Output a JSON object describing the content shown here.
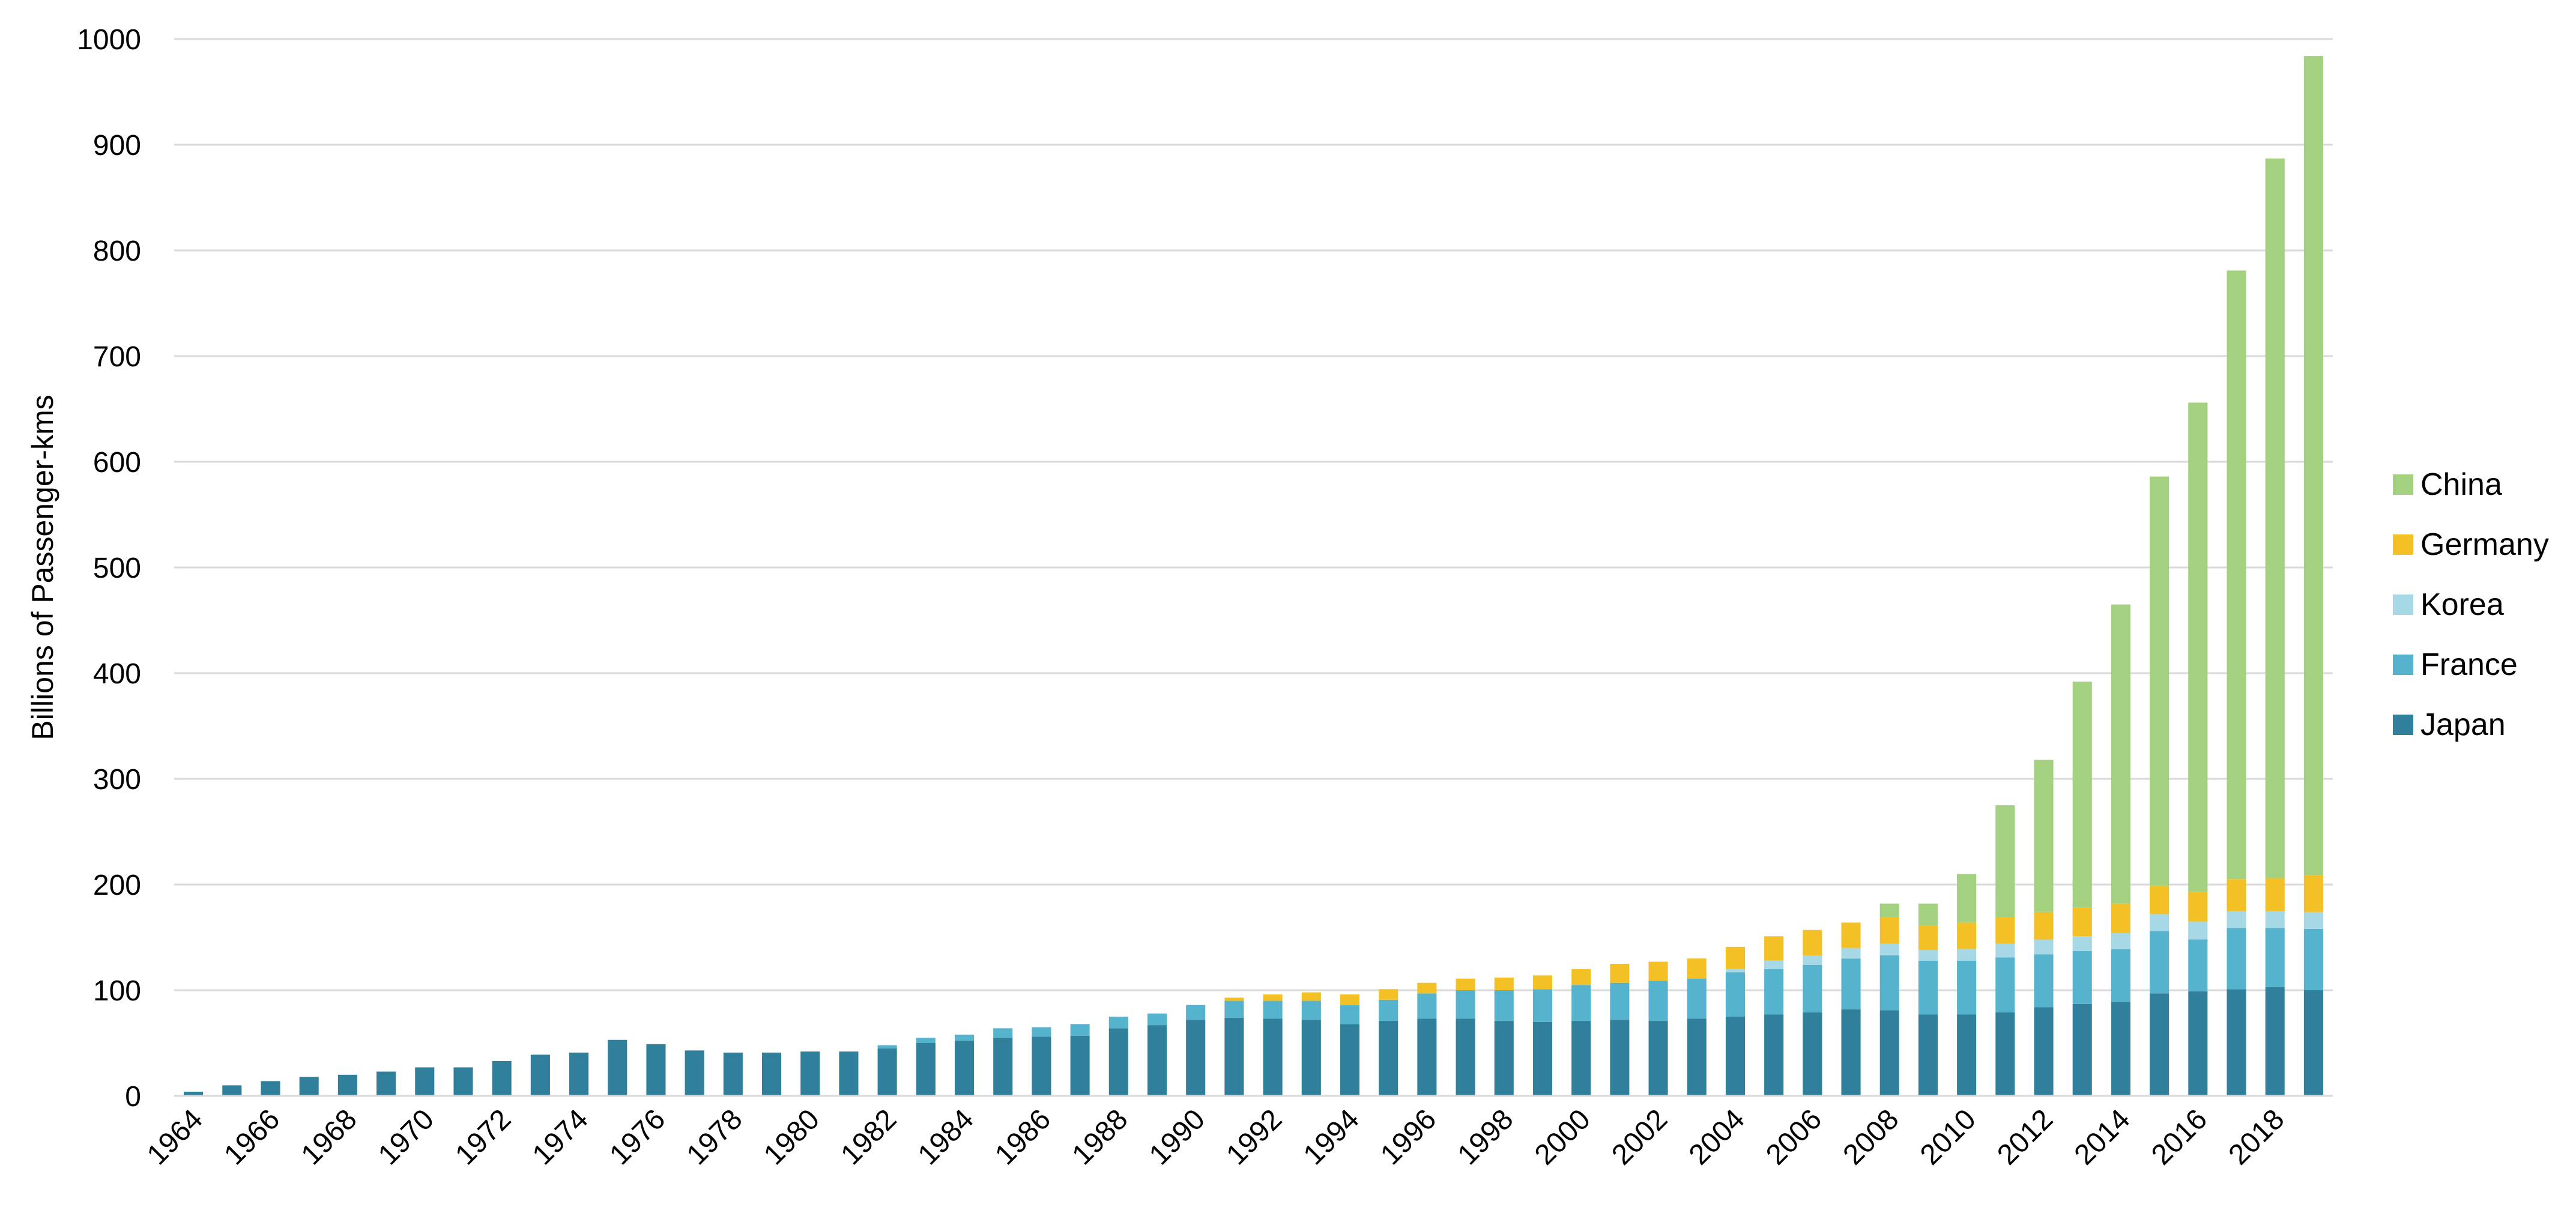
{
  "chart_data": {
    "type": "bar",
    "stacked": true,
    "title": "",
    "xlabel": "",
    "ylabel": "Billions of Passenger-kms",
    "ylim": [
      0,
      1000
    ],
    "yticks": [
      0,
      100,
      200,
      300,
      400,
      500,
      600,
      700,
      800,
      900,
      1000
    ],
    "grid": true,
    "legend_position": "right",
    "categories": [
      "1964",
      "1965",
      "1966",
      "1967",
      "1968",
      "1969",
      "1970",
      "1971",
      "1972",
      "1973",
      "1974",
      "1975",
      "1976",
      "1977",
      "1978",
      "1979",
      "1980",
      "1981",
      "1982",
      "1983",
      "1984",
      "1985",
      "1986",
      "1987",
      "1988",
      "1989",
      "1990",
      "1991",
      "1992",
      "1993",
      "1994",
      "1995",
      "1996",
      "1997",
      "1998",
      "1999",
      "2000",
      "2001",
      "2002",
      "2003",
      "2004",
      "2005",
      "2006",
      "2007",
      "2008",
      "2009",
      "2010",
      "2011",
      "2012",
      "2013",
      "2014",
      "2015",
      "2016",
      "2017",
      "2018",
      "2019"
    ],
    "x_tick_labels": [
      "1964",
      "",
      "1966",
      "",
      "1968",
      "",
      "1970",
      "",
      "1972",
      "",
      "1974",
      "",
      "1976",
      "",
      "1978",
      "",
      "1980",
      "",
      "1982",
      "",
      "1984",
      "",
      "1986",
      "",
      "1988",
      "",
      "1990",
      "",
      "1992",
      "",
      "1994",
      "",
      "1996",
      "",
      "1998",
      "",
      "2000",
      "",
      "2002",
      "",
      "2004",
      "",
      "2006",
      "",
      "2008",
      "",
      "2010",
      "",
      "2012",
      "",
      "2014",
      "",
      "2016",
      "",
      "2018",
      ""
    ],
    "series": [
      {
        "name": "Japan",
        "color": "#31809b",
        "values": [
          4,
          10,
          14,
          18,
          20,
          23,
          27,
          27,
          33,
          39,
          41,
          53,
          49,
          43,
          41,
          41,
          42,
          42,
          45,
          50,
          52,
          55,
          56,
          57,
          64,
          67,
          72,
          74,
          73,
          72,
          68,
          71,
          73,
          73,
          71,
          70,
          71,
          72,
          71,
          73,
          75,
          77,
          79,
          82,
          81,
          77,
          77,
          79,
          84,
          87,
          89,
          97,
          99,
          101,
          103,
          100
        ]
      },
      {
        "name": "France",
        "color": "#56b3ce",
        "values": [
          0,
          0,
          0,
          0,
          0,
          0,
          0,
          0,
          0,
          0,
          0,
          0,
          0,
          0,
          0,
          0,
          0,
          0,
          3,
          5,
          6,
          9,
          9,
          11,
          11,
          11,
          14,
          16,
          17,
          18,
          18,
          20,
          24,
          27,
          29,
          31,
          34,
          35,
          38,
          38,
          42,
          43,
          45,
          48,
          52,
          51,
          51,
          52,
          50,
          50,
          50,
          59,
          49,
          58,
          56,
          58
        ]
      },
      {
        "name": "Korea",
        "color": "#a6d8e6",
        "values": [
          0,
          0,
          0,
          0,
          0,
          0,
          0,
          0,
          0,
          0,
          0,
          0,
          0,
          0,
          0,
          0,
          0,
          0,
          0,
          0,
          0,
          0,
          0,
          0,
          0,
          0,
          0,
          0,
          0,
          0,
          0,
          0,
          0,
          0,
          0,
          0,
          0,
          0,
          0,
          0,
          3,
          8,
          9,
          10,
          11,
          10,
          11,
          13,
          14,
          14,
          15,
          16,
          17,
          16,
          16,
          16
        ]
      },
      {
        "name": "Germany",
        "color": "#f3c125",
        "values": [
          0,
          0,
          0,
          0,
          0,
          0,
          0,
          0,
          0,
          0,
          0,
          0,
          0,
          0,
          0,
          0,
          0,
          0,
          0,
          0,
          0,
          0,
          0,
          0,
          0,
          0,
          0,
          3,
          6,
          8,
          10,
          10,
          10,
          11,
          12,
          13,
          15,
          18,
          18,
          19,
          21,
          23,
          24,
          24,
          25,
          23,
          25,
          25,
          26,
          27,
          28,
          27,
          28,
          30,
          31,
          35
        ]
      },
      {
        "name": "China",
        "color": "#a3d17f",
        "values": [
          0,
          0,
          0,
          0,
          0,
          0,
          0,
          0,
          0,
          0,
          0,
          0,
          0,
          0,
          0,
          0,
          0,
          0,
          0,
          0,
          0,
          0,
          0,
          0,
          0,
          0,
          0,
          0,
          0,
          0,
          0,
          0,
          0,
          0,
          0,
          0,
          0,
          0,
          0,
          0,
          0,
          0,
          0,
          0,
          13,
          21,
          46,
          106,
          144,
          214,
          283,
          387,
          463,
          576,
          681,
          775
        ]
      }
    ]
  },
  "legend": [
    {
      "label": "China",
      "color": "#a3d17f"
    },
    {
      "label": "Germany",
      "color": "#f3c125"
    },
    {
      "label": "Korea",
      "color": "#a6d8e6"
    },
    {
      "label": "France",
      "color": "#56b3ce"
    },
    {
      "label": "Japan",
      "color": "#31809b"
    }
  ]
}
